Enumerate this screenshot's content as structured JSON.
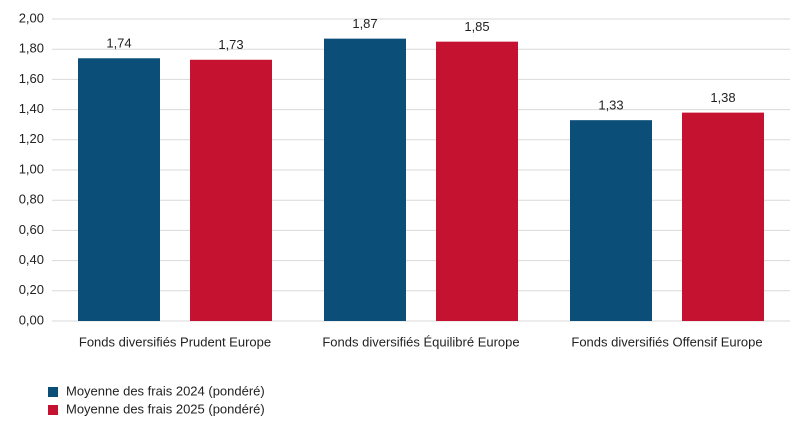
{
  "chart_data": {
    "type": "bar",
    "categories": [
      "Fonds diversifiés Prudent Europe",
      "Fonds diversifiés Équilibré Europe",
      "Fonds diversifiés Offensif Europe"
    ],
    "series": [
      {
        "name": "Moyenne des frais 2024 (pondéré)",
        "color": "#0b4f79",
        "values": [
          1.74,
          1.87,
          1.33
        ],
        "value_labels": [
          "1,74",
          "1,87",
          "1,33"
        ]
      },
      {
        "name": "Moyenne des frais 2025 (pondéré)",
        "color": "#c41230",
        "values": [
          1.73,
          1.85,
          1.38
        ],
        "value_labels": [
          "1,73",
          "1,85",
          "1,38"
        ]
      }
    ],
    "ylim": [
      0,
      2
    ],
    "yticks": [
      {
        "value": 0,
        "label": "0,00"
      },
      {
        "value": 0.2,
        "label": "0,20"
      },
      {
        "value": 0.4,
        "label": "0,40"
      },
      {
        "value": 0.6,
        "label": "0,60"
      },
      {
        "value": 0.8,
        "label": "0,80"
      },
      {
        "value": 1,
        "label": "1,00"
      },
      {
        "value": 1.2,
        "label": "1,20"
      },
      {
        "value": 1.4,
        "label": "1,40"
      },
      {
        "value": 1.6,
        "label": "1,60"
      },
      {
        "value": 1.8,
        "label": "1,80"
      },
      {
        "value": 2,
        "label": "2,00"
      }
    ],
    "grid": true,
    "legend": "bottom-left"
  }
}
